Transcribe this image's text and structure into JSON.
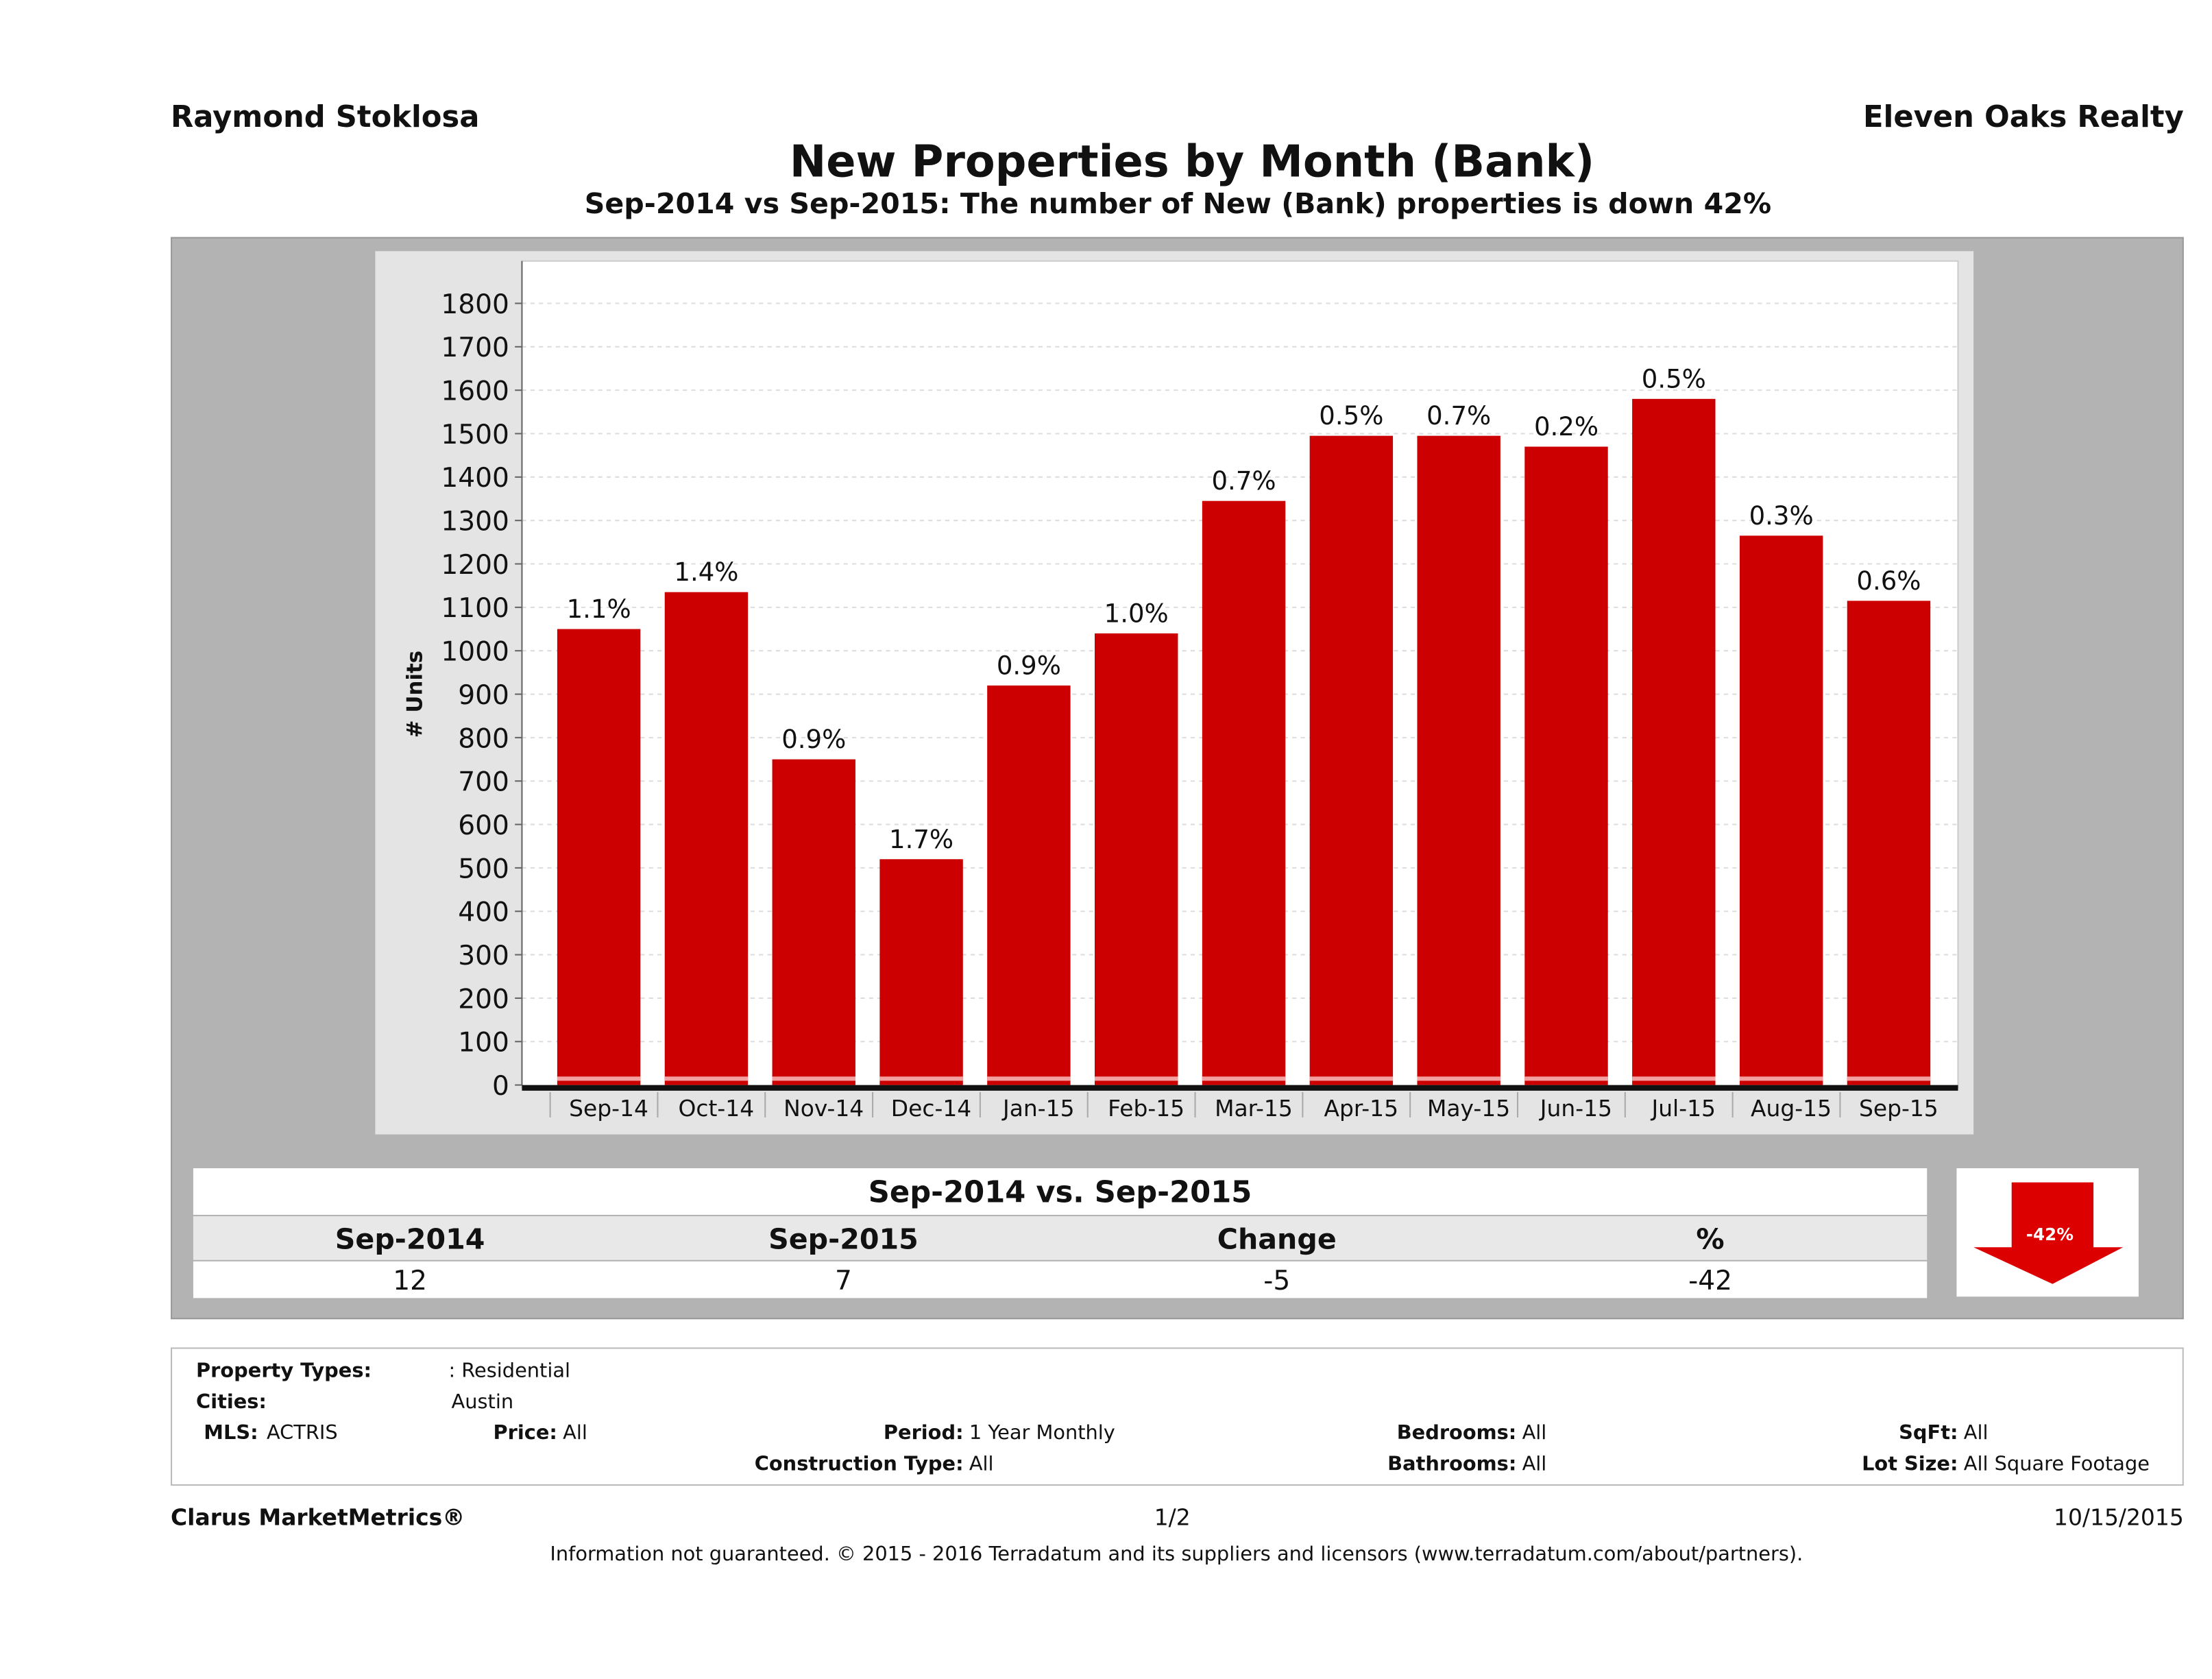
{
  "header": {
    "agent": "Raymond Stoklosa",
    "brokerage": "Eleven Oaks Realty"
  },
  "title": "New Properties by Month (Bank)",
  "subtitle": "Sep-2014 vs Sep-2015: The number of New (Bank)  properties is down 42%",
  "chart_data": {
    "type": "bar",
    "title": "New Properties by Month (Bank)",
    "ylabel": "# Units",
    "xlabel": "",
    "ylim": [
      0,
      1800
    ],
    "yticks": [
      "0",
      "100",
      "200",
      "300",
      "400",
      "500",
      "600",
      "700",
      "800",
      "900",
      "1000",
      "1100",
      "1200",
      "1300",
      "1400",
      "1500",
      "1600",
      "1700",
      "1800"
    ],
    "grid": true,
    "categories": [
      "Sep-14",
      "Oct-14",
      "Nov-14",
      "Dec-14",
      "Jan-15",
      "Feb-15",
      "Mar-15",
      "Apr-15",
      "May-15",
      "Jun-15",
      "Jul-15",
      "Aug-15",
      "Sep-15"
    ],
    "values": [
      1050,
      1135,
      750,
      520,
      920,
      1040,
      1345,
      1495,
      1495,
      1470,
      1580,
      1265,
      1115
    ],
    "data_labels": [
      "1.1%",
      "1.4%",
      "0.9%",
      "1.7%",
      "0.9%",
      "1.0%",
      "0.7%",
      "0.5%",
      "0.7%",
      "0.2%",
      "0.5%",
      "0.3%",
      "0.6%"
    ],
    "bar_color": "#cc0000"
  },
  "summary": {
    "heading": "Sep-2014 vs. Sep-2015",
    "labels": [
      "Sep-2014",
      "Sep-2015",
      "Change",
      "%"
    ],
    "values": [
      "12",
      "7",
      "-5",
      "-42"
    ],
    "badge": "-42%",
    "badge_color": "#dd0000",
    "badge_icon": "down-arrow-icon"
  },
  "filters": {
    "property_types_label": "Property Types:",
    "property_types": ": Residential",
    "cities_label": "Cities:",
    "cities": "Austin",
    "mls_label": "MLS:",
    "mls": "ACTRIS",
    "price_label": "Price:",
    "price": "All",
    "period_label": "Period:",
    "period": "1 Year Monthly",
    "construction_label": "Construction Type:",
    "construction": "All",
    "bedrooms_label": "Bedrooms:",
    "bedrooms": "All",
    "bathrooms_label": "Bathrooms:",
    "bathrooms": "All",
    "sqft_label": "SqFt:",
    "sqft": "All",
    "lotsize_label": "Lot Size:",
    "lotsize": "All Square Footage"
  },
  "footer": {
    "brand": "Clarus MarketMetrics®",
    "page": "1/2",
    "date": "10/15/2015",
    "disclaimer": "Information not guaranteed. © 2015 - 2016 Terradatum and its suppliers and licensors (www.terradatum.com/about/partners)."
  }
}
